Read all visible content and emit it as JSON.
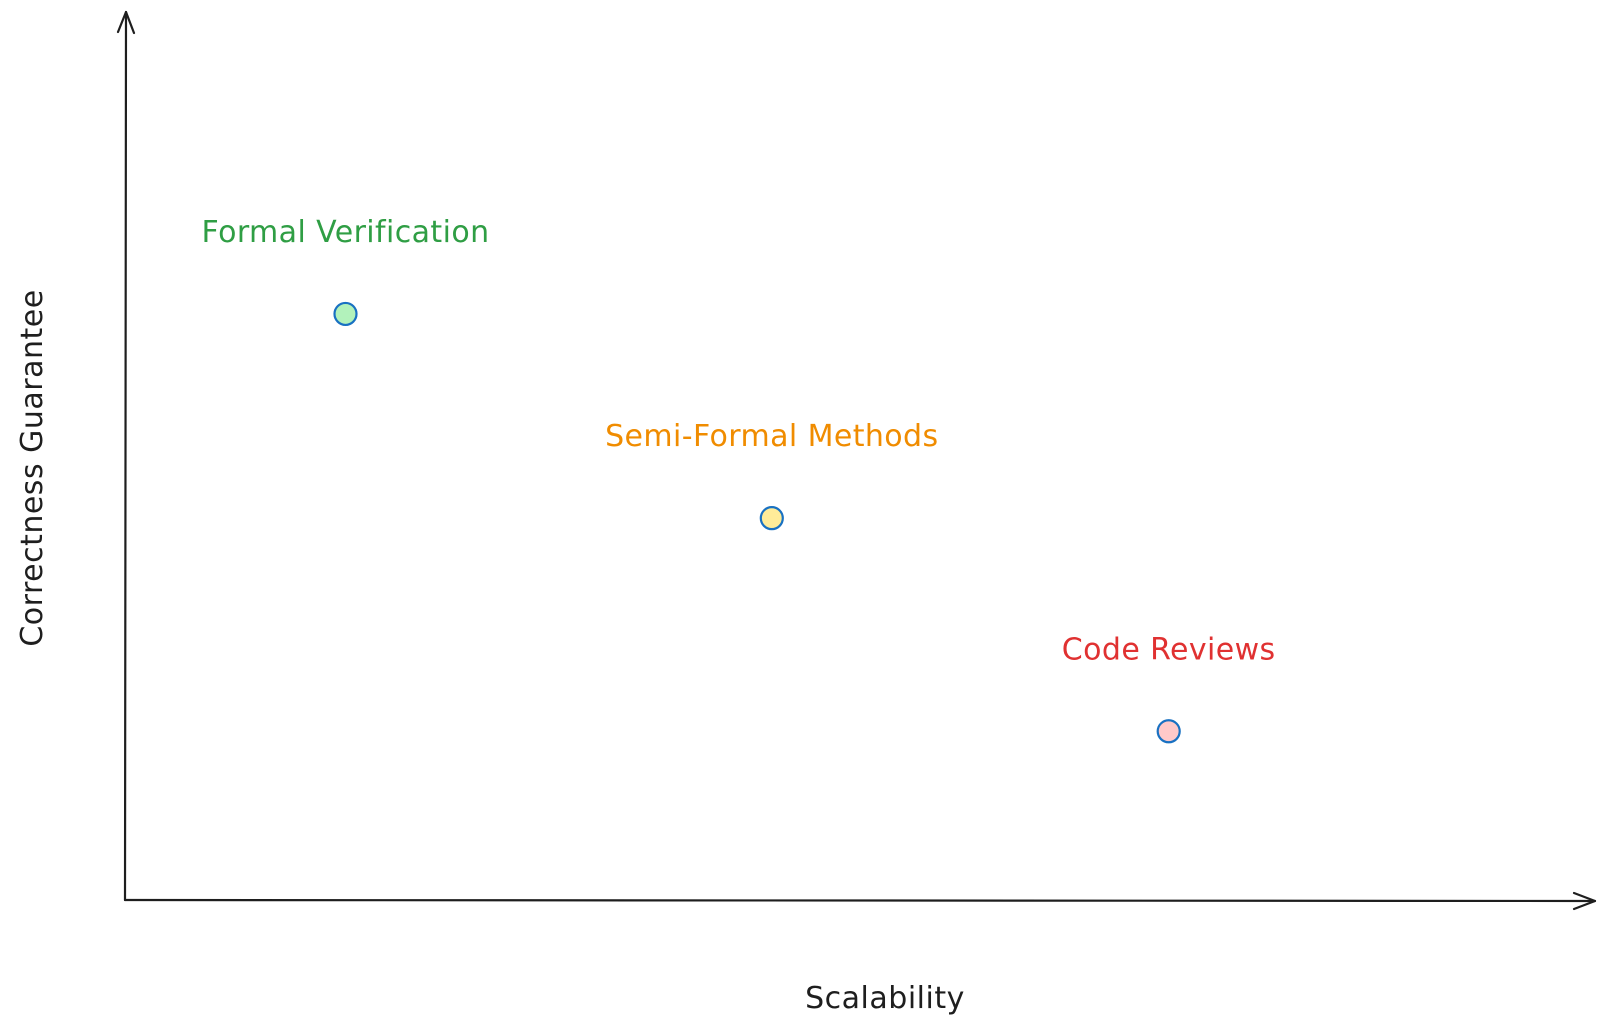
{
  "chart_data": {
    "type": "scatter",
    "title": "",
    "xlabel": "Scalability",
    "ylabel": "Correctness Guarantee",
    "xlim": [
      0,
      10
    ],
    "ylim": [
      0,
      10
    ],
    "grid": false,
    "legend": "none",
    "axis_color": "#1e1e1e",
    "marker_stroke": "#1971c2",
    "points": [
      {
        "label": "Formal Verification",
        "x": 1.5,
        "y": 6.6,
        "label_color": "#2f9e44",
        "fill": "#b2f2bb"
      },
      {
        "label": "Semi-Formal Methods",
        "x": 4.4,
        "y": 4.3,
        "label_color": "#f08c00",
        "fill": "#ffec99"
      },
      {
        "label": "Code Reviews",
        "x": 7.1,
        "y": 1.9,
        "label_color": "#e03131",
        "fill": "#ffc9c9"
      }
    ]
  }
}
